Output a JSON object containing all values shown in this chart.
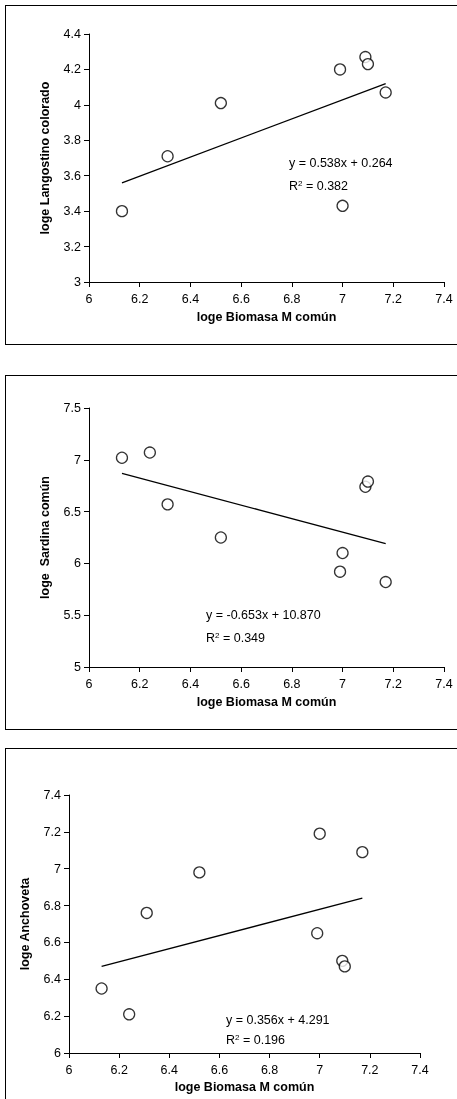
{
  "chart_data": [
    {
      "type": "scatter",
      "xlabel": "loge Biomasa M común",
      "ylabel": "loge Langostino colorado",
      "xlim": [
        6,
        7.4
      ],
      "xticks": [
        6,
        6.2,
        6.4,
        6.6,
        6.8,
        7,
        7.2,
        7.4
      ],
      "ylim": [
        3,
        4.4
      ],
      "yticks": [
        3,
        3.2,
        3.4,
        3.6,
        3.8,
        4,
        4.2,
        4.4
      ],
      "grid": false,
      "marker": "circle",
      "annotations": [
        "y = 0.538x + 0.264",
        "R$^{2}$ = 0.382"
      ],
      "series": [
        {
          "color": "#000000",
          "x": [
            6.13,
            6.31,
            6.52,
            6.99,
            7.0,
            7.09,
            7.1,
            7.17
          ],
          "values": [
            3.4,
            3.71,
            4.01,
            4.2,
            3.43,
            4.27,
            4.23,
            4.07
          ]
        },
        {
          "type": "line",
          "color": "#000000",
          "marker": "none",
          "line_style": "solid",
          "x": [
            6.13,
            7.17
          ],
          "values": [
            3.56,
            4.12
          ]
        }
      ]
    },
    {
      "type": "scatter",
      "xlabel": "loge Biomasa M común",
      "ylabel": "loge  Sardina común",
      "xlim": [
        6,
        7.4
      ],
      "xticks": [
        6,
        6.2,
        6.4,
        6.6,
        6.8,
        7,
        7.2,
        7.4
      ],
      "ylim": [
        5,
        7.5
      ],
      "yticks": [
        5,
        5.5,
        6,
        6.5,
        7,
        7.5
      ],
      "grid": false,
      "marker": "circle",
      "annotations": [
        "y = -0.653x + 10.870",
        "R$^{2}$ = 0.349"
      ],
      "series": [
        {
          "color": "#000000",
          "x": [
            6.13,
            6.24,
            6.31,
            6.52,
            6.99,
            7.0,
            7.09,
            7.1,
            7.17
          ],
          "values": [
            7.02,
            7.07,
            6.57,
            6.25,
            5.92,
            6.1,
            6.74,
            6.79,
            5.82
          ]
        },
        {
          "type": "line",
          "color": "#000000",
          "marker": "none",
          "line_style": "solid",
          "x": [
            6.13,
            7.17
          ],
          "values": [
            6.87,
            6.19
          ]
        }
      ]
    },
    {
      "type": "scatter",
      "xlabel": "loge Biomasa M común",
      "ylabel": "loge Anchoveta",
      "xlim": [
        6,
        7.4
      ],
      "xticks": [
        6,
        6.2,
        6.4,
        6.6,
        6.8,
        7,
        7.2,
        7.4
      ],
      "ylim": [
        6,
        7.4
      ],
      "yticks": [
        6,
        6.2,
        6.4,
        6.6,
        6.8,
        7,
        7.2,
        7.4
      ],
      "grid": false,
      "marker": "circle",
      "annotations": [
        "y = 0.356x + 4.291",
        "R$^{2}$ = 0.196"
      ],
      "series": [
        {
          "color": "#000000",
          "x": [
            6.13,
            6.24,
            6.31,
            6.52,
            6.99,
            7.0,
            7.09,
            7.1,
            7.17
          ],
          "values": [
            6.35,
            6.21,
            6.76,
            6.98,
            6.65,
            7.19,
            6.5,
            6.47,
            7.09
          ]
        },
        {
          "type": "line",
          "color": "#000000",
          "marker": "none",
          "line_style": "solid",
          "x": [
            6.13,
            7.17
          ],
          "values": [
            6.47,
            6.84
          ]
        }
      ]
    }
  ]
}
